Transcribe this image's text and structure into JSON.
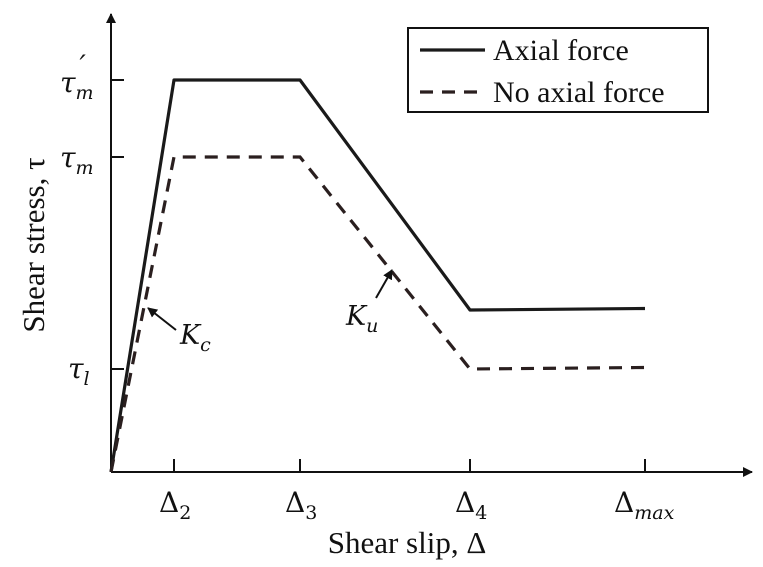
{
  "chart_data": {
    "type": "line",
    "xlabel": "Shear slip, Δ",
    "ylabel": "Shear stress, τ",
    "x_ticks": [
      {
        "key": "d2",
        "base": "Δ",
        "sub": "2",
        "italic": false
      },
      {
        "key": "d3",
        "base": "Δ",
        "sub": "3",
        "italic": false
      },
      {
        "key": "d4",
        "base": "Δ",
        "sub": "4",
        "italic": false
      },
      {
        "key": "dmax",
        "base": "Δ",
        "sub": "max",
        "italic": true
      }
    ],
    "y_ticks": [
      {
        "key": "tau_m_prime",
        "base": "τ",
        "sub": "m",
        "prime": "′"
      },
      {
        "key": "tau_m",
        "base": "τ",
        "sub": "m",
        "prime": ""
      },
      {
        "key": "tau_l",
        "base": "τ",
        "sub": "l",
        "prime": ""
      }
    ],
    "series": [
      {
        "name": "Axial force",
        "style": "solid",
        "color": "#1a1a1a",
        "x": [
          0,
          "Δ2",
          "Δ3",
          "Δ4",
          "Δmax"
        ],
        "y": [
          0,
          "τm′",
          "τm′",
          "≈ τl + 0.1",
          "≈ τl + 0.1"
        ]
      },
      {
        "name": "No axial force",
        "style": "dashed",
        "color": "#2a1f1f",
        "x": [
          0,
          "Δ2",
          "Δ3",
          "Δ4",
          "Δmax"
        ],
        "y": [
          0,
          "τm",
          "τm",
          "τl",
          "τl"
        ]
      }
    ],
    "annotations": [
      {
        "key": "kc",
        "base": "K",
        "sub": "c"
      },
      {
        "key": "ku",
        "base": "K",
        "sub": "u"
      }
    ],
    "legend": {
      "position": "top-right",
      "entries": [
        "Axial force",
        "No axial force"
      ]
    },
    "grid": false
  }
}
